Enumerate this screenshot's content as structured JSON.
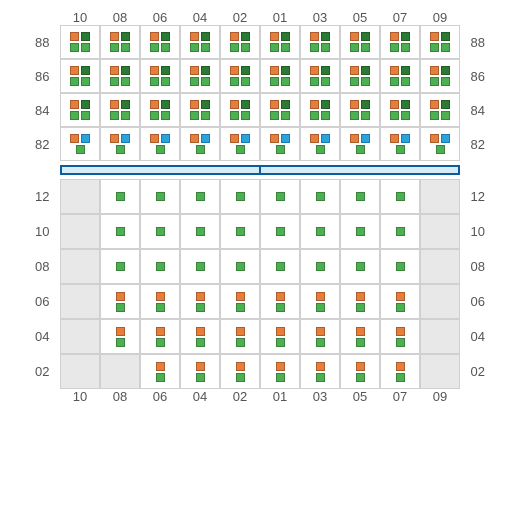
{
  "layout": {
    "columns": [
      "10",
      "08",
      "06",
      "04",
      "02",
      "01",
      "03",
      "05",
      "07",
      "09"
    ],
    "top_rows": [
      "88",
      "86",
      "84",
      "82"
    ],
    "bottom_rows": [
      "12",
      "10",
      "08",
      "06",
      "04",
      "02"
    ]
  },
  "colors": {
    "orange": "#e77d3a",
    "green": "#4caf50",
    "darkgreen": "#2d7a32",
    "blue": "#29a4df",
    "grid": "#d0d0d0",
    "graybg": "#e8e8e8",
    "divider_border": "#0b5da0",
    "divider_fill": "#d8ecf7",
    "label": "#555555"
  },
  "top": {
    "88": {
      "pattern": "ODG",
      "cols": [
        "10",
        "08",
        "06",
        "04",
        "02",
        "01",
        "03",
        "05",
        "07",
        "09"
      ]
    },
    "86": {
      "pattern": "ODG",
      "cols": [
        "10",
        "08",
        "06",
        "04",
        "02",
        "01",
        "03",
        "05",
        "07",
        "09"
      ]
    },
    "84": {
      "pattern": "ODG",
      "cols": [
        "10",
        "08",
        "06",
        "04",
        "02",
        "01",
        "03",
        "05",
        "07",
        "09"
      ]
    },
    "82": {
      "pattern": "OBG",
      "cols": [
        "10",
        "08",
        "06",
        "04",
        "02",
        "01",
        "03",
        "05",
        "07",
        "09"
      ]
    }
  },
  "bottom": {
    "12": {
      "pattern": "G",
      "cols": [
        "08",
        "06",
        "04",
        "02",
        "01",
        "03",
        "05",
        "07"
      ],
      "gray": [
        "10",
        "09"
      ]
    },
    "10": {
      "pattern": "G",
      "cols": [
        "08",
        "06",
        "04",
        "02",
        "01",
        "03",
        "05",
        "07"
      ],
      "gray": [
        "10",
        "09"
      ]
    },
    "08": {
      "pattern": "G",
      "cols": [
        "08",
        "06",
        "04",
        "02",
        "01",
        "03",
        "05",
        "07"
      ],
      "gray": [
        "10",
        "09"
      ]
    },
    "06": {
      "pattern": "OG",
      "cols": [
        "08",
        "06",
        "04",
        "02",
        "01",
        "03",
        "05",
        "07"
      ],
      "gray": [
        "10",
        "09"
      ]
    },
    "04": {
      "pattern": "OG",
      "cols": [
        "08",
        "06",
        "04",
        "02",
        "01",
        "03",
        "05",
        "07"
      ],
      "gray": [
        "10",
        "09"
      ]
    },
    "02": {
      "pattern": "OG",
      "cols": [
        "06",
        "04",
        "02",
        "01",
        "03",
        "05",
        "07"
      ],
      "gray": [
        "10",
        "08",
        "09"
      ]
    }
  },
  "patterns": {
    "ODG": {
      "top_pair": [
        "orange",
        "darkgreen"
      ],
      "bottom_pair": [
        "green",
        "green"
      ]
    },
    "OBG": {
      "top_pair": [
        "orange",
        "blue"
      ],
      "bottom_single": "green"
    },
    "OG": {
      "top_single": "orange",
      "bottom_single": "green"
    },
    "G": {
      "top_single": "green"
    }
  }
}
